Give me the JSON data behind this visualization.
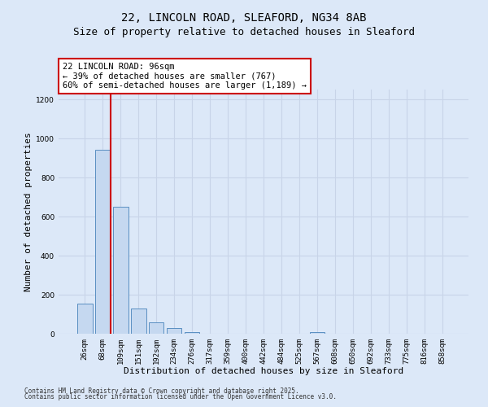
{
  "title_line1": "22, LINCOLN ROAD, SLEAFORD, NG34 8AB",
  "title_line2": "Size of property relative to detached houses in Sleaford",
  "xlabel": "Distribution of detached houses by size in Sleaford",
  "ylabel": "Number of detached properties",
  "categories": [
    "26sqm",
    "68sqm",
    "109sqm",
    "151sqm",
    "192sqm",
    "234sqm",
    "276sqm",
    "317sqm",
    "359sqm",
    "400sqm",
    "442sqm",
    "484sqm",
    "525sqm",
    "567sqm",
    "608sqm",
    "650sqm",
    "692sqm",
    "733sqm",
    "775sqm",
    "816sqm",
    "858sqm"
  ],
  "values": [
    155,
    940,
    650,
    130,
    60,
    30,
    10,
    0,
    0,
    0,
    0,
    0,
    0,
    10,
    0,
    0,
    0,
    0,
    0,
    0,
    0
  ],
  "bar_color": "#c5d8f0",
  "bar_edge_color": "#5a8fc2",
  "red_line_bar_index": 1,
  "annotation_text": "22 LINCOLN ROAD: 96sqm\n← 39% of detached houses are smaller (767)\n60% of semi-detached houses are larger (1,189) →",
  "annotation_box_facecolor": "#ffffff",
  "annotation_box_edgecolor": "#cc0000",
  "red_line_color": "#cc0000",
  "grid_color": "#c8d4e8",
  "background_color": "#dce8f8",
  "plot_bg_color": "#dce8f8",
  "ylim": [
    0,
    1250
  ],
  "yticks": [
    0,
    200,
    400,
    600,
    800,
    1000,
    1200
  ],
  "footer_line1": "Contains HM Land Registry data © Crown copyright and database right 2025.",
  "footer_line2": "Contains public sector information licensed under the Open Government Licence v3.0.",
  "fig_width": 6.0,
  "fig_height": 5.0,
  "title_fontsize": 10,
  "subtitle_fontsize": 9,
  "ylabel_fontsize": 8,
  "xlabel_fontsize": 8,
  "tick_fontsize": 6.5,
  "annotation_fontsize": 7.5,
  "footer_fontsize": 5.5
}
